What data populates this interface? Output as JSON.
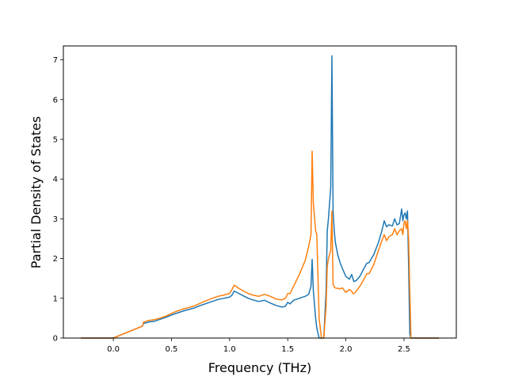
{
  "chart_data": {
    "type": "line",
    "title": "",
    "xlabel": "Frequency (THz)",
    "ylabel": "Partial Density of States",
    "xlim": [
      -0.43,
      2.95
    ],
    "ylim": [
      0,
      7.35
    ],
    "xticks": [
      0.0,
      0.5,
      1.0,
      1.5,
      2.0,
      2.5
    ],
    "xtick_labels": [
      "0.0",
      "0.5",
      "1.0",
      "1.5",
      "2.0",
      "2.5"
    ],
    "yticks": [
      0,
      1,
      2,
      3,
      4,
      5,
      6,
      7
    ],
    "ytick_labels": [
      "0",
      "1",
      "2",
      "3",
      "4",
      "5",
      "6",
      "7"
    ],
    "grid": false,
    "legend": "none",
    "series": [
      {
        "color": "#1f77b4",
        "x": [
          -0.28,
          -0.2,
          -0.1,
          0.0,
          0.05,
          0.1,
          0.15,
          0.2,
          0.25,
          0.26,
          0.28,
          0.3,
          0.35,
          0.4,
          0.45,
          0.5,
          0.55,
          0.6,
          0.65,
          0.7,
          0.75,
          0.8,
          0.85,
          0.9,
          0.95,
          1.0,
          1.02,
          1.04,
          1.08,
          1.12,
          1.16,
          1.2,
          1.25,
          1.3,
          1.35,
          1.4,
          1.45,
          1.48,
          1.5,
          1.52,
          1.55,
          1.6,
          1.65,
          1.68,
          1.7,
          1.71,
          1.72,
          1.74,
          1.75,
          1.77,
          1.79,
          1.81,
          1.83,
          1.84,
          1.85,
          1.87,
          1.88,
          1.89,
          1.9,
          1.91,
          1.93,
          1.95,
          1.97,
          2.0,
          2.03,
          2.05,
          2.06,
          2.07,
          2.09,
          2.12,
          2.15,
          2.18,
          2.2,
          2.24,
          2.28,
          2.31,
          2.33,
          2.35,
          2.37,
          2.4,
          2.42,
          2.44,
          2.46,
          2.48,
          2.49,
          2.5,
          2.51,
          2.52,
          2.53,
          2.54,
          2.55,
          2.56,
          2.6,
          2.8
        ],
        "y": [
          0.0,
          0.0,
          0.0,
          0.0,
          0.06,
          0.12,
          0.18,
          0.24,
          0.3,
          0.37,
          0.38,
          0.4,
          0.42,
          0.47,
          0.52,
          0.58,
          0.63,
          0.68,
          0.72,
          0.76,
          0.82,
          0.87,
          0.92,
          0.97,
          1.0,
          1.03,
          1.08,
          1.18,
          1.12,
          1.06,
          1.0,
          0.96,
          0.92,
          0.95,
          0.88,
          0.82,
          0.78,
          0.8,
          0.9,
          0.86,
          0.95,
          1.0,
          1.05,
          1.1,
          1.3,
          1.98,
          1.2,
          0.5,
          0.25,
          0.0,
          0.0,
          0.0,
          1.2,
          2.7,
          3.0,
          3.8,
          7.1,
          3.2,
          2.7,
          2.4,
          2.1,
          1.9,
          1.75,
          1.55,
          1.48,
          1.6,
          1.5,
          1.42,
          1.45,
          1.55,
          1.72,
          1.88,
          1.9,
          2.1,
          2.4,
          2.7,
          2.95,
          2.8,
          2.85,
          2.82,
          3.0,
          2.85,
          2.88,
          3.25,
          2.95,
          3.1,
          3.15,
          3.0,
          3.2,
          1.8,
          0.1,
          0.0,
          0.0,
          0.0
        ]
      },
      {
        "color": "#ff7f0e",
        "x": [
          -0.28,
          -0.2,
          -0.1,
          0.0,
          0.05,
          0.1,
          0.15,
          0.2,
          0.25,
          0.26,
          0.28,
          0.3,
          0.35,
          0.4,
          0.45,
          0.5,
          0.55,
          0.6,
          0.65,
          0.7,
          0.75,
          0.8,
          0.85,
          0.9,
          0.95,
          1.0,
          1.02,
          1.04,
          1.08,
          1.12,
          1.16,
          1.2,
          1.25,
          1.3,
          1.35,
          1.4,
          1.45,
          1.48,
          1.5,
          1.52,
          1.55,
          1.6,
          1.65,
          1.68,
          1.7,
          1.71,
          1.72,
          1.74,
          1.75,
          1.77,
          1.79,
          1.81,
          1.83,
          1.84,
          1.85,
          1.87,
          1.88,
          1.89,
          1.9,
          1.91,
          1.93,
          1.95,
          1.97,
          2.0,
          2.03,
          2.05,
          2.06,
          2.07,
          2.09,
          2.12,
          2.15,
          2.18,
          2.2,
          2.24,
          2.28,
          2.31,
          2.33,
          2.35,
          2.37,
          2.4,
          2.42,
          2.44,
          2.46,
          2.48,
          2.49,
          2.5,
          2.51,
          2.52,
          2.53,
          2.54,
          2.55,
          2.56,
          2.6,
          2.8
        ],
        "y": [
          0.0,
          0.0,
          0.0,
          0.0,
          0.06,
          0.12,
          0.18,
          0.24,
          0.3,
          0.4,
          0.42,
          0.44,
          0.46,
          0.5,
          0.55,
          0.62,
          0.68,
          0.73,
          0.77,
          0.81,
          0.88,
          0.94,
          1.0,
          1.05,
          1.08,
          1.12,
          1.22,
          1.33,
          1.25,
          1.18,
          1.12,
          1.08,
          1.05,
          1.1,
          1.05,
          0.98,
          0.96,
          1.0,
          1.12,
          1.12,
          1.3,
          1.6,
          1.95,
          2.3,
          2.6,
          4.7,
          3.4,
          2.7,
          2.6,
          0.5,
          0.0,
          0.0,
          0.8,
          1.8,
          2.0,
          2.2,
          3.2,
          1.35,
          1.28,
          1.26,
          1.25,
          1.24,
          1.26,
          1.15,
          1.22,
          1.18,
          1.12,
          1.12,
          1.18,
          1.3,
          1.45,
          1.62,
          1.62,
          1.85,
          2.2,
          2.45,
          2.6,
          2.45,
          2.55,
          2.6,
          2.75,
          2.6,
          2.7,
          2.75,
          2.6,
          2.9,
          2.95,
          2.75,
          2.95,
          2.5,
          1.2,
          0.0,
          0.0,
          0.0
        ]
      }
    ]
  }
}
